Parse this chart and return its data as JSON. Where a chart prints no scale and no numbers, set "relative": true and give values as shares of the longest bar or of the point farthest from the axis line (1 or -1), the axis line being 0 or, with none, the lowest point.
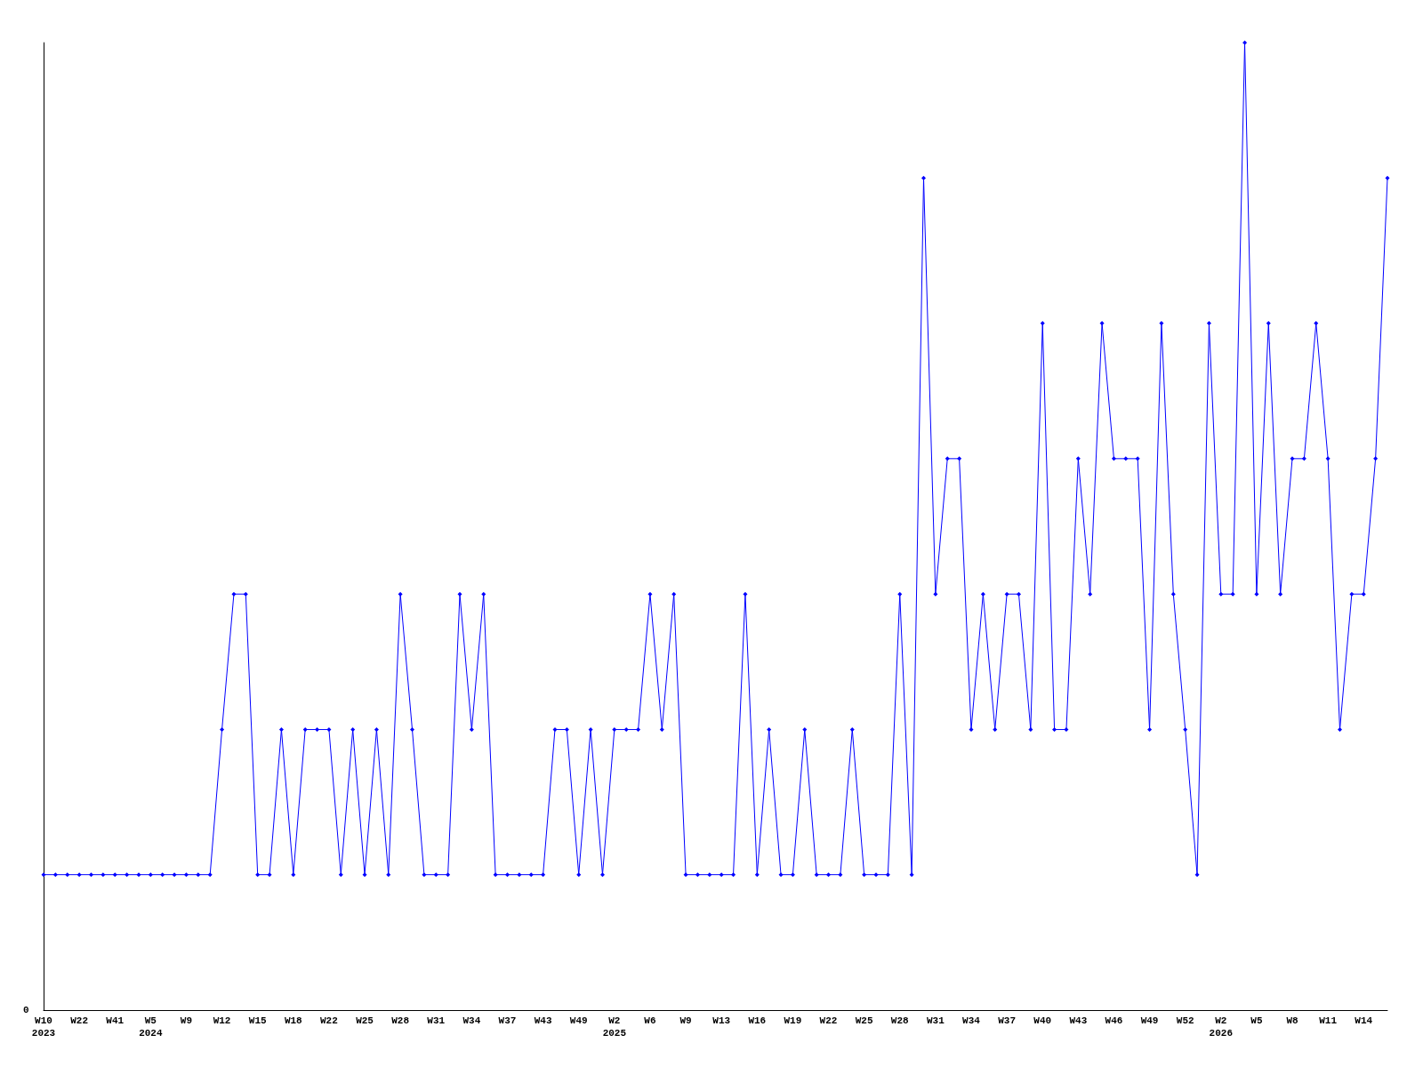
{
  "chart_data": {
    "type": "line",
    "relative": true,
    "marker": "diamond",
    "line_style": "solid",
    "annotations": [
      "0"
    ],
    "categories": [
      "W10\n2023",
      null,
      null,
      "W22",
      null,
      null,
      "W41",
      null,
      null,
      "W5\n2024",
      null,
      null,
      "W9",
      null,
      null,
      "W12",
      null,
      null,
      "W15",
      null,
      null,
      "W18",
      null,
      null,
      "W22",
      null,
      null,
      "W25",
      null,
      null,
      "W28",
      null,
      null,
      "W31",
      null,
      null,
      "W34",
      null,
      null,
      "W37",
      null,
      null,
      "W43",
      null,
      null,
      "W49",
      null,
      null,
      "W2\n2025",
      null,
      null,
      "W6",
      null,
      null,
      "W9",
      null,
      null,
      "W13",
      null,
      null,
      "W16",
      null,
      null,
      "W19",
      null,
      null,
      "W22",
      null,
      null,
      "W25",
      null,
      null,
      "W28",
      null,
      null,
      "W31",
      null,
      null,
      "W34",
      null,
      null,
      "W37",
      null,
      null,
      "W40",
      null,
      null,
      "W43",
      null,
      null,
      "W46",
      null,
      null,
      "W49",
      null,
      null,
      "W52",
      null,
      null,
      "W2\n2026",
      null,
      null,
      "W5",
      null,
      null,
      "W8",
      null,
      null,
      "W11",
      null,
      null,
      "W14",
      null,
      null
    ],
    "series": [
      {
        "color": "#0000ff",
        "values": [
          0.14,
          0.14,
          0.14,
          0.14,
          0.14,
          0.14,
          0.14,
          0.14,
          0.14,
          0.14,
          0.14,
          0.14,
          0.14,
          0.14,
          0.14,
          0.29,
          0.43,
          0.43,
          0.14,
          0.14,
          0.29,
          0.14,
          0.29,
          0.29,
          0.29,
          0.14,
          0.29,
          0.14,
          0.29,
          0.14,
          0.43,
          0.29,
          0.14,
          0.14,
          0.14,
          0.43,
          0.29,
          0.43,
          0.14,
          0.14,
          0.14,
          0.14,
          0.14,
          0.29,
          0.29,
          0.14,
          0.29,
          0.14,
          0.29,
          0.29,
          0.29,
          0.43,
          0.29,
          0.43,
          0.14,
          0.14,
          0.14,
          0.14,
          0.14,
          0.43,
          0.14,
          0.29,
          0.14,
          0.14,
          0.29,
          0.14,
          0.14,
          0.14,
          0.29,
          0.14,
          0.14,
          0.14,
          0.43,
          0.14,
          0.86,
          0.43,
          0.57,
          0.57,
          0.29,
          0.43,
          0.29,
          0.43,
          0.43,
          0.29,
          0.71,
          0.29,
          0.29,
          0.57,
          0.43,
          0.71,
          0.57,
          0.57,
          0.57,
          0.29,
          0.71,
          0.43,
          0.29,
          0.14,
          0.71,
          0.43,
          0.43,
          1,
          0.43,
          0.71,
          0.43,
          0.57,
          0.57,
          0.71,
          0.57,
          0.29,
          0.43,
          0.43,
          0.57,
          0.86
        ]
      }
    ]
  }
}
